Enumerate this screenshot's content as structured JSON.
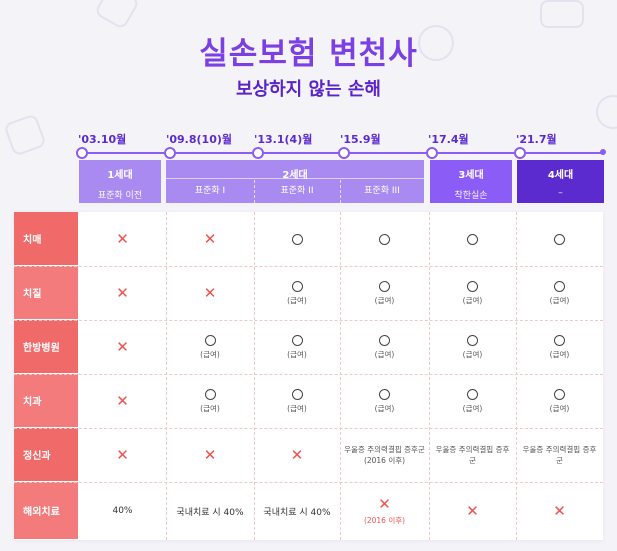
{
  "title": "실손보험 변천사",
  "subtitle": "보상하지 않는 손해",
  "timeline": [
    "'03.10월",
    "'09.8(10)월",
    "'13.1(4)월",
    "'15.9월",
    "'17.4월",
    "'21.7월"
  ],
  "generations": {
    "gen1": {
      "name": "1세대",
      "sub": "표준화 이전"
    },
    "gen2": {
      "name": "2세대",
      "subs": [
        "표준화 I",
        "표준화 II",
        "표준화 III"
      ]
    },
    "gen3": {
      "name": "3세대",
      "sub": "착한실손"
    },
    "gen4": {
      "name": "4세대",
      "sub": "–"
    }
  },
  "rows": [
    {
      "label": "치매",
      "cells": [
        {
          "m": "x"
        },
        {
          "m": "x"
        },
        {
          "m": "o"
        },
        {
          "m": "o"
        },
        {
          "m": "o"
        },
        {
          "m": "o"
        }
      ]
    },
    {
      "label": "치질",
      "cells": [
        {
          "m": "x"
        },
        {
          "m": "x"
        },
        {
          "m": "o",
          "note": "(급여)"
        },
        {
          "m": "o",
          "note": "(급여)"
        },
        {
          "m": "o",
          "note": "(급여)"
        },
        {
          "m": "o",
          "note": "(급여)"
        }
      ]
    },
    {
      "label": "한방병원",
      "cells": [
        {
          "m": "x"
        },
        {
          "m": "o",
          "note": "(급여)"
        },
        {
          "m": "o",
          "note": "(급여)"
        },
        {
          "m": "o",
          "note": "(급여)"
        },
        {
          "m": "o",
          "note": "(급여)"
        },
        {
          "m": "o",
          "note": "(급여)"
        }
      ]
    },
    {
      "label": "치과",
      "cells": [
        {
          "m": "x"
        },
        {
          "m": "o",
          "note": "(급여)"
        },
        {
          "m": "o",
          "note": "(급여)"
        },
        {
          "m": "o",
          "note": "(급여)"
        },
        {
          "m": "o",
          "note": "(급여)"
        },
        {
          "m": "o",
          "note": "(급여)"
        }
      ]
    },
    {
      "label": "정신과",
      "cells": [
        {
          "m": "x"
        },
        {
          "m": "x"
        },
        {
          "m": "x"
        },
        {
          "m": "t",
          "text": "우울증 주의력결핍 증후군 (2016 이후)"
        },
        {
          "m": "t",
          "text": "우울증 주의력결핍 증후군"
        },
        {
          "m": "t",
          "text": "우울증 주의력결핍 증후군"
        }
      ]
    },
    {
      "label": "해외치료",
      "cells": [
        {
          "m": "v",
          "text": "40%"
        },
        {
          "m": "v",
          "text": "국내치료 시 40%"
        },
        {
          "m": "v",
          "text": "국내치료 시 40%"
        },
        {
          "m": "x",
          "note": "(2016 이후)",
          "red": true
        },
        {
          "m": "x"
        },
        {
          "m": "x"
        }
      ]
    }
  ],
  "colors": {
    "accent": "#7b3fe4",
    "gen_light": "#a98af0",
    "gen_dark": "#5b2bd0",
    "label_bg": "#f06a6a",
    "x_mark": "#ef5350"
  }
}
